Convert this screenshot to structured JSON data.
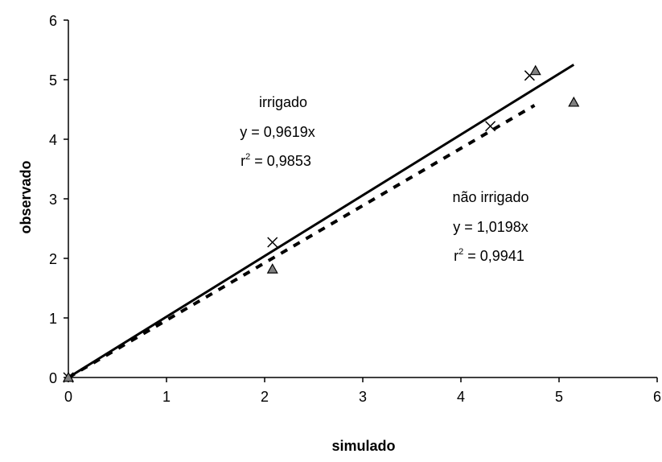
{
  "chart_data": {
    "type": "scatter",
    "xlabel": "simulado",
    "ylabel": "observado",
    "xlim": [
      0,
      6
    ],
    "ylim": [
      0,
      6
    ],
    "x_ticks": [
      "0",
      "1",
      "2",
      "3",
      "4",
      "5",
      "6"
    ],
    "y_ticks": [
      "0",
      "1",
      "2",
      "3",
      "4",
      "5",
      "6"
    ],
    "grid": false,
    "legend": "none",
    "series": [
      {
        "marker": "cross",
        "line_style": "dashed",
        "color": "#000000",
        "points": [
          {
            "x": 0.0,
            "y": 0.0
          },
          {
            "x": 2.08,
            "y": 2.27
          },
          {
            "x": 4.3,
            "y": 4.22
          },
          {
            "x": 4.7,
            "y": 5.07
          }
        ],
        "fit": {
          "slope": 0.9619,
          "x_start": 0,
          "x_end": 4.75
        }
      },
      {
        "marker": "triangle",
        "line_style": "solid",
        "color": "#000000",
        "marker_fill": "#808080",
        "points": [
          {
            "x": 0.0,
            "y": 0.0
          },
          {
            "x": 2.08,
            "y": 1.82
          },
          {
            "x": 4.76,
            "y": 5.15
          },
          {
            "x": 5.15,
            "y": 4.62
          }
        ],
        "fit": {
          "slope": 1.0198,
          "x_start": 0,
          "x_end": 5.15
        }
      }
    ],
    "annotations": [
      {
        "id": "irrigado",
        "lines": [
          {
            "text": "irrigado"
          },
          {
            "text": "y = 0,9619x"
          },
          {
            "pre": "r",
            "sup": "2",
            "post": " = 0,9853"
          }
        ]
      },
      {
        "id": "nao-irrigado",
        "lines": [
          {
            "text": "não irrigado"
          },
          {
            "text": "y = 1,0198x"
          },
          {
            "pre": "r",
            "sup": "2",
            "post": " = 0,9941"
          }
        ]
      }
    ]
  }
}
